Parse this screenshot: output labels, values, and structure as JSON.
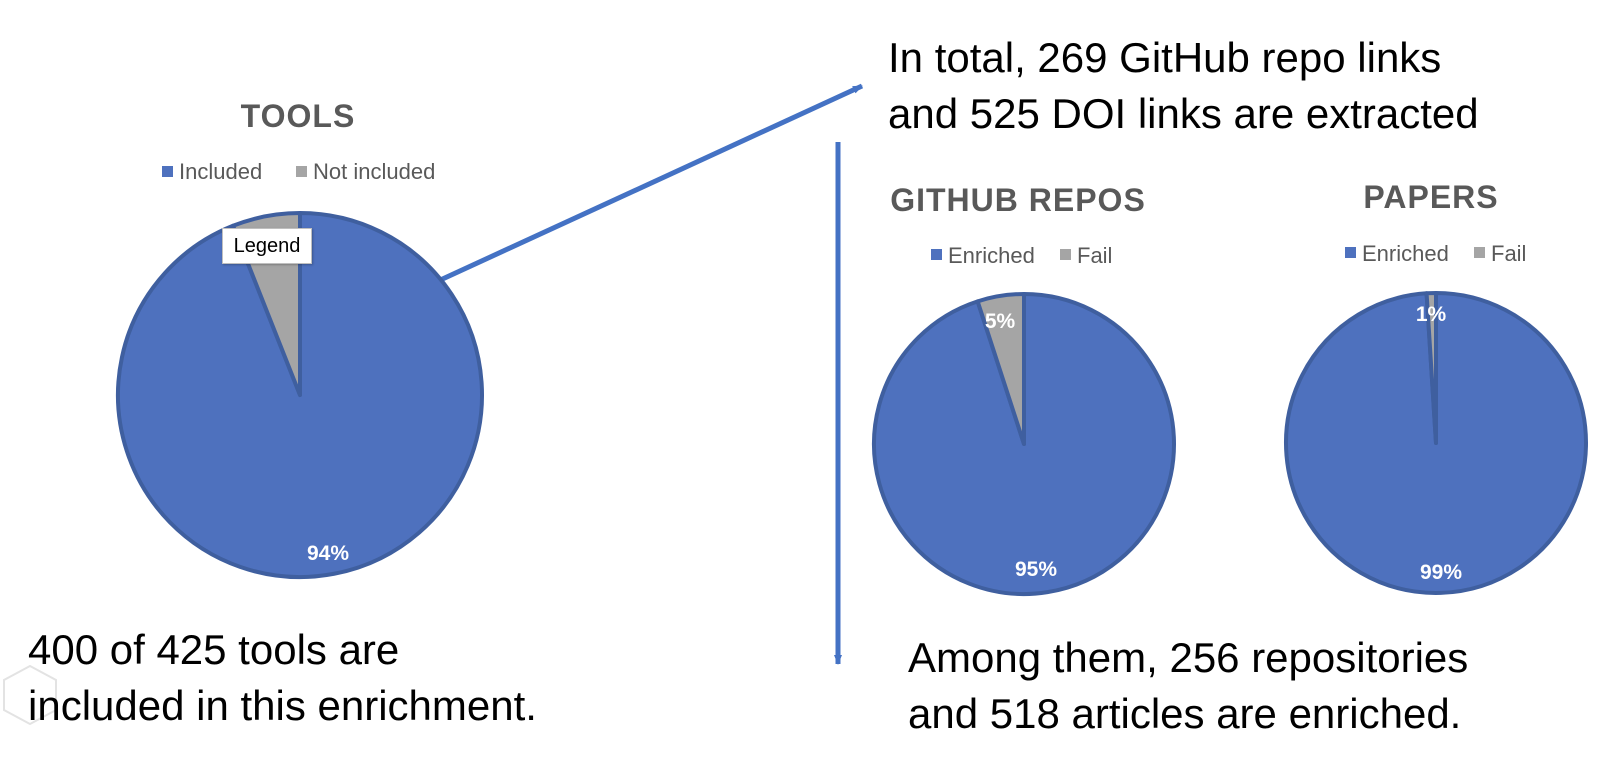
{
  "colors": {
    "primary": "#4E71BE",
    "secondary": "#A5A5A5",
    "arrow": "#4472C4"
  },
  "tooltip": {
    "label": "Legend"
  },
  "annotations": {
    "top_right": [
      "In total, 269 GitHub repo links",
      "and 525 DOI links are extracted"
    ],
    "bottom_left": [
      "400 of 425 tools are",
      "included in this enrichment."
    ],
    "bottom_right": [
      "Among them, 256 repositories",
      "and 518 articles are enriched."
    ]
  },
  "chart_data": [
    {
      "type": "pie",
      "title": "TOOLS",
      "legend": [
        "Included",
        "Not included"
      ],
      "values": [
        94,
        6
      ],
      "labels": [
        "94%",
        "6%"
      ]
    },
    {
      "type": "pie",
      "title": "GITHUB REPOS",
      "legend": [
        "Enriched",
        "Fail"
      ],
      "values": [
        95,
        5
      ],
      "labels": [
        "95%",
        "5%"
      ]
    },
    {
      "type": "pie",
      "title": "PAPERS",
      "legend": [
        "Enriched",
        "Fail"
      ],
      "values": [
        99,
        1
      ],
      "labels": [
        "99%",
        "1%"
      ]
    }
  ]
}
